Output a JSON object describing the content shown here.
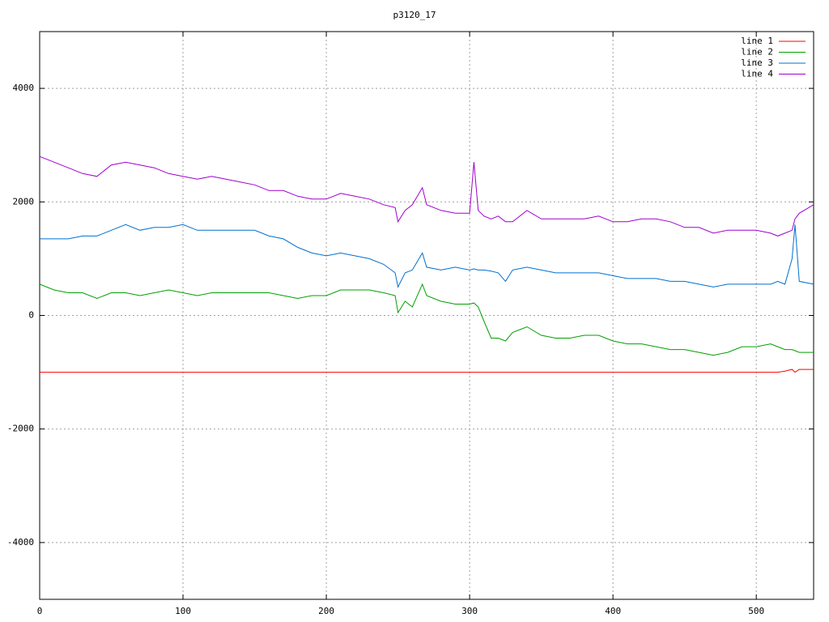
{
  "chart_data": {
    "type": "line",
    "title": "p3120_17",
    "x": [
      0,
      10,
      20,
      30,
      40,
      50,
      60,
      70,
      80,
      90,
      100,
      110,
      120,
      130,
      140,
      150,
      160,
      170,
      180,
      190,
      200,
      210,
      220,
      230,
      240,
      248,
      250,
      255,
      260,
      267,
      270,
      280,
      290,
      300,
      303,
      306,
      310,
      315,
      320,
      325,
      330,
      340,
      350,
      360,
      370,
      380,
      390,
      400,
      410,
      420,
      430,
      440,
      450,
      460,
      470,
      480,
      490,
      500,
      510,
      515,
      520,
      525,
      527,
      530,
      540
    ],
    "series": [
      {
        "name": "line 1",
        "color": "#ff0000",
        "values": [
          -1000,
          -1000,
          -1000,
          -1000,
          -1000,
          -1000,
          -1000,
          -1000,
          -1000,
          -1000,
          -1000,
          -1000,
          -1000,
          -1000,
          -1000,
          -1000,
          -1000,
          -1000,
          -1000,
          -1000,
          -1000,
          -1000,
          -1000,
          -1000,
          -1000,
          -1000,
          -1000,
          -1000,
          -1000,
          -1000,
          -1000,
          -1000,
          -1000,
          -1000,
          -1000,
          -1000,
          -1000,
          -1000,
          -1000,
          -1000,
          -1000,
          -1000,
          -1000,
          -1000,
          -1000,
          -1000,
          -1000,
          -1000,
          -1000,
          -1000,
          -1000,
          -1000,
          -1000,
          -1000,
          -1000,
          -1000,
          -1000,
          -1000,
          -1000,
          -1000,
          -980,
          -950,
          -1000,
          -950,
          -950
        ]
      },
      {
        "name": "line 2",
        "color": "#00a000",
        "values": [
          550,
          450,
          400,
          400,
          300,
          400,
          400,
          350,
          400,
          450,
          400,
          350,
          400,
          400,
          400,
          400,
          400,
          350,
          300,
          350,
          350,
          450,
          450,
          450,
          400,
          350,
          50,
          250,
          150,
          550,
          350,
          250,
          200,
          200,
          220,
          150,
          -100,
          -400,
          -400,
          -450,
          -300,
          -200,
          -350,
          -400,
          -400,
          -350,
          -350,
          -450,
          -500,
          -500,
          -550,
          -600,
          -600,
          -650,
          -700,
          -650,
          -550,
          -550,
          -500,
          -550,
          -600,
          -600,
          -620,
          -650,
          -650
        ]
      },
      {
        "name": "line 3",
        "color": "#0070d0",
        "values": [
          1350,
          1350,
          1350,
          1400,
          1400,
          1500,
          1600,
          1500,
          1550,
          1550,
          1600,
          1500,
          1500,
          1500,
          1500,
          1500,
          1400,
          1350,
          1200,
          1100,
          1050,
          1100,
          1050,
          1000,
          900,
          750,
          500,
          750,
          800,
          1100,
          850,
          800,
          850,
          800,
          820,
          800,
          800,
          780,
          750,
          600,
          800,
          850,
          800,
          750,
          750,
          750,
          750,
          700,
          650,
          650,
          650,
          600,
          600,
          550,
          500,
          550,
          550,
          550,
          550,
          600,
          550,
          1000,
          1600,
          600,
          550
        ]
      },
      {
        "name": "line 4",
        "color": "#a000d0",
        "values": [
          2800,
          2700,
          2600,
          2500,
          2450,
          2650,
          2700,
          2650,
          2600,
          2500,
          2450,
          2400,
          2450,
          2400,
          2350,
          2300,
          2200,
          2200,
          2100,
          2050,
          2050,
          2150,
          2100,
          2050,
          1950,
          1900,
          1650,
          1850,
          1950,
          2250,
          1950,
          1850,
          1800,
          1800,
          2700,
          1850,
          1750,
          1700,
          1750,
          1650,
          1650,
          1850,
          1700,
          1700,
          1700,
          1700,
          1750,
          1650,
          1650,
          1700,
          1700,
          1650,
          1550,
          1550,
          1450,
          1500,
          1500,
          1500,
          1450,
          1400,
          1450,
          1500,
          1700,
          1800,
          1950
        ]
      }
    ],
    "xlim": [
      0,
      540
    ],
    "xticks": [
      0,
      100,
      200,
      300,
      400,
      500
    ],
    "ylim": [
      -5000,
      5000
    ],
    "yticks": [
      -4000,
      -2000,
      0,
      2000,
      4000
    ],
    "grid": true,
    "legend": "top-right"
  }
}
